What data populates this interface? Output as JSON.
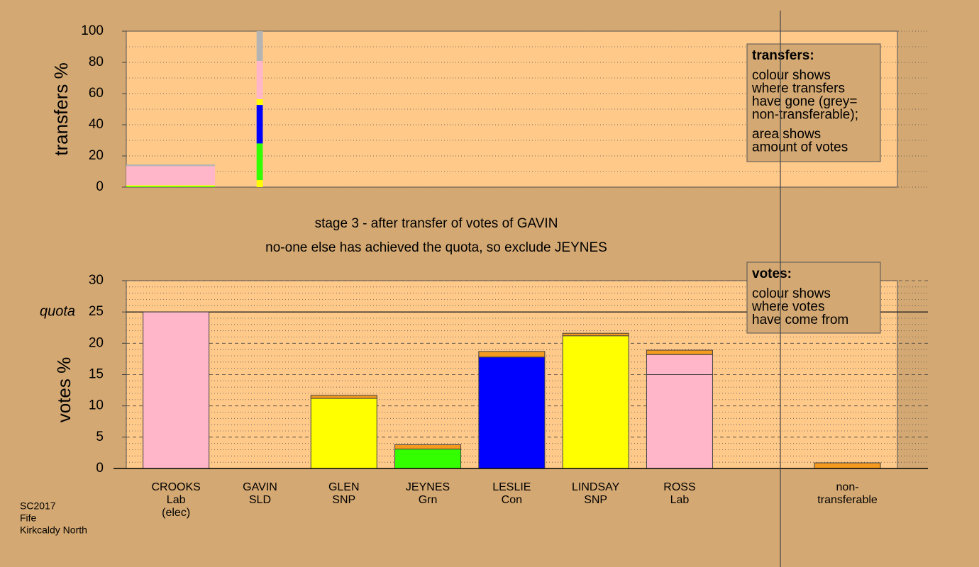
{
  "chart_data": [
    {
      "type": "bar",
      "y_label": "transfers %",
      "ylim": [
        0,
        100
      ],
      "yticks": [
        0,
        20,
        40,
        60,
        80,
        100
      ],
      "minor_yticks": [
        10,
        30,
        50,
        70,
        90
      ],
      "xlim": [
        0,
        100
      ],
      "grid": "dotted",
      "bars": [
        {
          "x": [
            0,
            11.5
          ],
          "segments": [
            {
              "color": "#33ff00",
              "value": 0.5
            },
            {
              "color": "#ffff00",
              "value": 0.7
            },
            {
              "color": "#ffb6c8",
              "value": 12.3
            },
            {
              "color": "#b4b4b4",
              "value": 1.0
            }
          ]
        },
        {
          "x": [
            16.9,
            17.7
          ],
          "segments": [
            {
              "color": "#ffff00",
              "value": 4.5
            },
            {
              "color": "#33ff00",
              "value": 23.5
            },
            {
              "color": "#0000ff",
              "value": 24.7
            },
            {
              "color": "#ffff00",
              "value": 3.7
            },
            {
              "color": "#ffb6c8",
              "value": 24.5
            },
            {
              "color": "#b4b4b4",
              "value": 19.1
            }
          ]
        }
      ],
      "note": {
        "title": "transfers:",
        "paragraphs": [
          [
            "colour shows",
            "where transfers",
            "have gone (grey=",
            "non-transferable);"
          ],
          [
            "area shows",
            "amount of votes"
          ]
        ]
      }
    },
    {
      "type": "bar",
      "y_label": "votes %",
      "ylim": [
        0,
        30
      ],
      "yticks": [
        0,
        5,
        10,
        15,
        20,
        25,
        30
      ],
      "minor_yticks": [
        1,
        2,
        3,
        4,
        6,
        7,
        8,
        9,
        11,
        12,
        13,
        14,
        16,
        17,
        18,
        19,
        21,
        22,
        23,
        24,
        26,
        27,
        28,
        29
      ],
      "grid": "dashed",
      "quota": {
        "value": 25,
        "label": "quota"
      },
      "categories": [
        [
          "CROOKS",
          "Lab",
          "(elec)"
        ],
        [
          "GAVIN",
          "SLD"
        ],
        [
          "GLEN",
          "SNP"
        ],
        [
          "JEYNES",
          "Grn"
        ],
        [
          "LESLIE",
          "Con"
        ],
        [
          "LINDSAY",
          "SNP"
        ],
        [
          "ROSS",
          "Lab"
        ],
        null,
        [
          "non-",
          "transferable"
        ]
      ],
      "bars": [
        {
          "segments": [
            {
              "color": "#ffb6c8",
              "value": 25
            }
          ]
        },
        {
          "segments": [
            {
              "color": "#ffb6c8",
              "value": 0
            }
          ]
        },
        {
          "segments": [
            {
              "color": "#ffff00",
              "value": 11.2
            },
            {
              "color": "#f39a1f",
              "value": 0.5
            }
          ]
        },
        {
          "segments": [
            {
              "color": "#33ff00",
              "value": 3.1
            },
            {
              "color": "#f39a1f",
              "value": 0.7
            }
          ]
        },
        {
          "segments": [
            {
              "color": "#0000ff",
              "value": 17.8
            },
            {
              "color": "#f39a1f",
              "value": 0.9
            }
          ]
        },
        {
          "segments": [
            {
              "color": "#ffff00",
              "value": 21.2
            },
            {
              "color": "#f39a1f",
              "value": 0.4
            }
          ]
        },
        {
          "segments": [
            {
              "color": "#ffb6c8",
              "value": 15.0
            },
            {
              "color": "#ffb6c8",
              "value": 3.2
            },
            {
              "color": "#f39a1f",
              "value": 0.7
            }
          ]
        },
        {
          "segments": []
        },
        {
          "segments": [
            {
              "color": "#f39a1f",
              "value": 0.9
            }
          ]
        }
      ],
      "note": {
        "title": "votes:",
        "paragraphs": [
          [
            "colour shows",
            "where votes",
            "have come from"
          ]
        ]
      }
    }
  ],
  "captions": [
    "stage 3 - after transfer of votes of GAVIN",
    "no-one else has achieved the quota, so exclude JEYNES"
  ],
  "footer": [
    "SC2017",
    "Fife",
    "Kirkcaldy North"
  ]
}
